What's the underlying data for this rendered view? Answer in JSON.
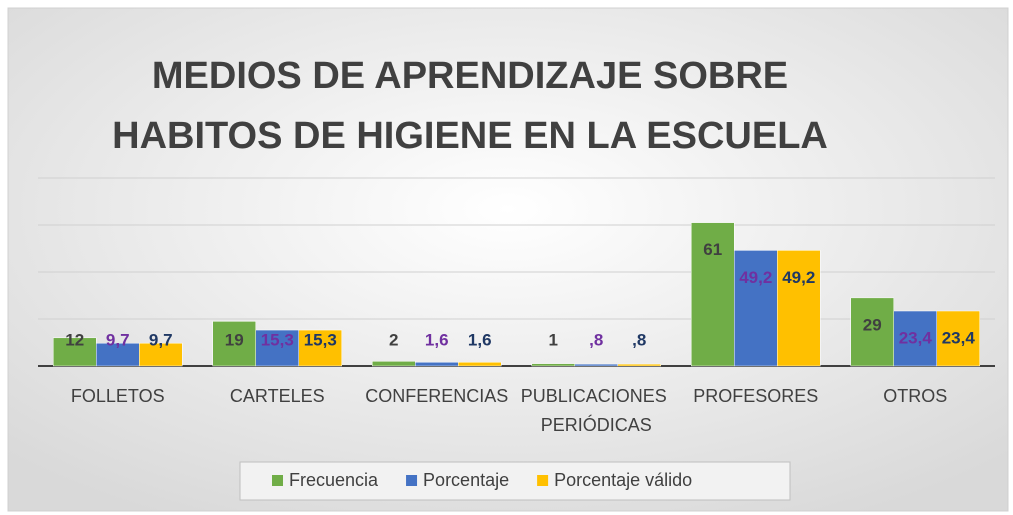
{
  "chart_data": {
    "type": "bar",
    "title": [
      "MEDIOS DE APRENDIZAJE SOBRE",
      "HABITOS DE HIGIENE EN LA ESCUELA"
    ],
    "categories": [
      "FOLLETOS",
      "CARTELES",
      "CONFERENCIAS",
      "PUBLICACIONES PERIÓDICAS",
      "PROFESORES",
      "OTROS"
    ],
    "series": [
      {
        "name": "Frecuencia",
        "color": "#70ad47",
        "label_color": "#404040",
        "values": [
          12,
          19,
          2,
          1,
          61,
          29
        ]
      },
      {
        "name": "Porcentaje",
        "color": "#4472c4",
        "label_color": "#7030a0",
        "values": [
          9.7,
          15.3,
          1.6,
          0.8,
          49.2,
          23.4
        ],
        "value_labels": [
          "9,7",
          "15,3",
          "1,6",
          ",8",
          "49,2",
          "23,4"
        ]
      },
      {
        "name": "Porcentaje válido",
        "color": "#ffc000",
        "label_color": "#1f3864",
        "values": [
          9.7,
          15.3,
          1.6,
          0.8,
          49.2,
          23.4
        ],
        "value_labels": [
          "9,7",
          "15,3",
          "1,6",
          ",8",
          "49,2",
          "23,4"
        ]
      }
    ],
    "ylim": [
      0,
      80
    ],
    "yticks": [
      0,
      20,
      40,
      60,
      80
    ],
    "grid": true,
    "show_y_tick_labels": false,
    "legend": "bottom"
  }
}
